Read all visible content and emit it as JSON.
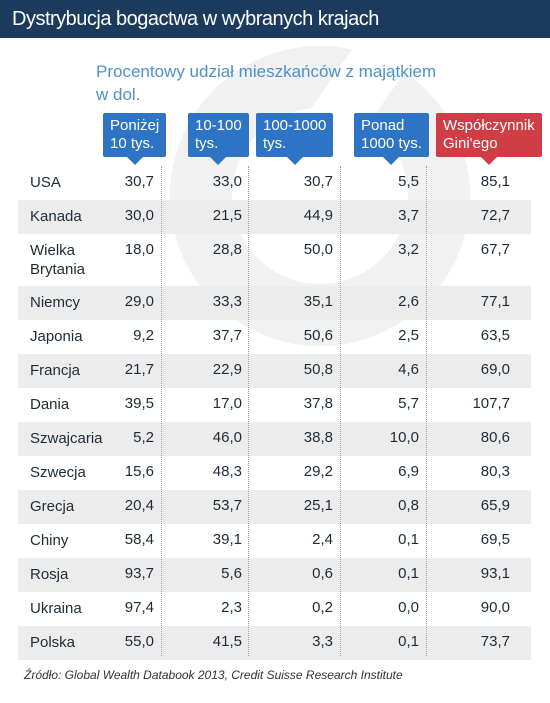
{
  "header": {
    "title": "Dystrybucja bogactwa w wybranych krajach",
    "subtitle_line1": "Procentowy udział mieszkańców z majątkiem",
    "subtitle_line2": "w dol."
  },
  "columns": [
    {
      "line1": "Poniżej",
      "line2": "10 tys."
    },
    {
      "line1": "10-100",
      "line2": "tys."
    },
    {
      "line1": "100-1000",
      "line2": "tys."
    },
    {
      "line1": "Ponad",
      "line2": "1000 tys."
    },
    {
      "line1": "Współczynnik",
      "line2": "Gini'ego"
    }
  ],
  "colors": {
    "title_bar": "#1b3a5c",
    "bracket_header": "#2e74c4",
    "gini_header": "#cf3d47",
    "subtitle": "#4f8fd0",
    "row_shade": "#ececec"
  },
  "chart_data": {
    "type": "table",
    "title": "Dystrybucja bogactwa w wybranych krajach",
    "columns": [
      "Poniżej 10 tys.",
      "10-100 tys.",
      "100-1000 tys.",
      "Ponad 1000 tys.",
      "Współczynnik Gini'ego"
    ],
    "rows": [
      {
        "country": "USA",
        "values": [
          "30,7",
          "33,0",
          "30,7",
          "5,5",
          "85,1"
        ]
      },
      {
        "country": "Kanada",
        "values": [
          "30,0",
          "21,5",
          "44,9",
          "3,7",
          "72,7"
        ]
      },
      {
        "country": "Wielka Brytania",
        "values": [
          "18,0",
          "28,8",
          "50,0",
          "3,2",
          "67,7"
        ]
      },
      {
        "country": "Niemcy",
        "values": [
          "29,0",
          "33,3",
          "35,1",
          "2,6",
          "77,1"
        ]
      },
      {
        "country": "Japonia",
        "values": [
          "9,2",
          "37,7",
          "50,6",
          "2,5",
          "63,5"
        ]
      },
      {
        "country": "Francja",
        "values": [
          "21,7",
          "22,9",
          "50,8",
          "4,6",
          "69,0"
        ]
      },
      {
        "country": "Dania",
        "values": [
          "39,5",
          "17,0",
          "37,8",
          "5,7",
          "107,7"
        ]
      },
      {
        "country": "Szwajcaria",
        "values": [
          "5,2",
          "46,0",
          "38,8",
          "10,0",
          "80,6"
        ]
      },
      {
        "country": "Szwecja",
        "values": [
          "15,6",
          "48,3",
          "29,2",
          "6,9",
          "80,3"
        ]
      },
      {
        "country": "Grecja",
        "values": [
          "20,4",
          "53,7",
          "25,1",
          "0,8",
          "65,9"
        ]
      },
      {
        "country": "Chiny",
        "values": [
          "58,4",
          "39,1",
          "2,4",
          "0,1",
          "69,5"
        ]
      },
      {
        "country": "Rosja",
        "values": [
          "93,7",
          "5,6",
          "0,6",
          "0,1",
          "93,1"
        ]
      },
      {
        "country": "Ukraina",
        "values": [
          "97,4",
          "2,3",
          "0,2",
          "0,0",
          "90,0"
        ]
      },
      {
        "country": "Polska",
        "values": [
          "55,0",
          "41,5",
          "3,3",
          "0,1",
          "73,7"
        ]
      }
    ]
  },
  "source": "Źródło: Global Wealth Databook 2013, Credit Suisse Research Institute"
}
